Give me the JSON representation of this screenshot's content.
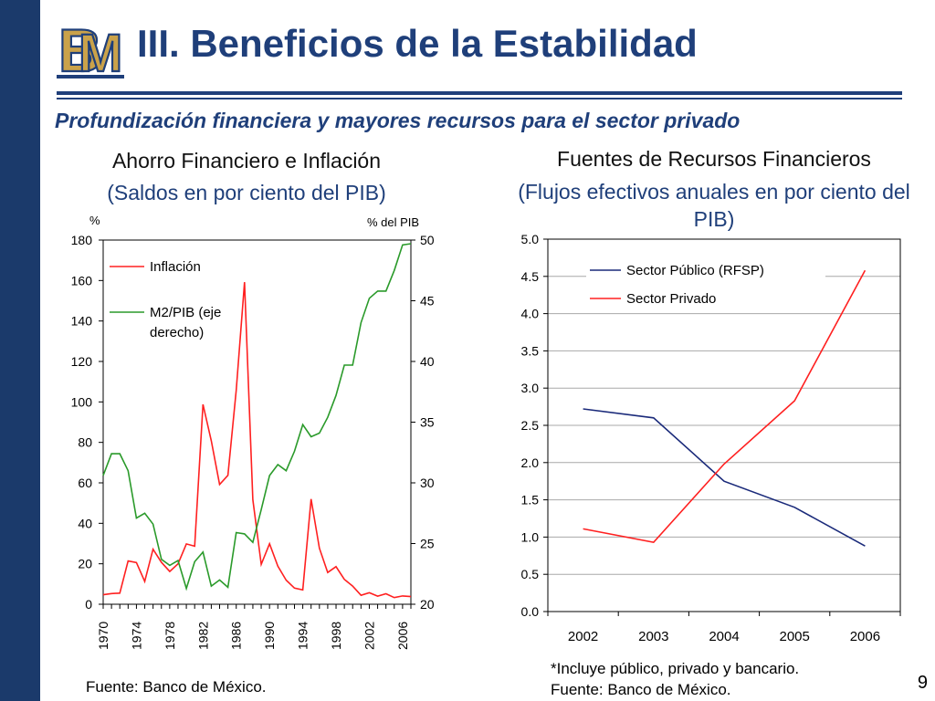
{
  "slide": {
    "title": "III. Beneficios de la Estabilidad",
    "subtitle": "Profundización financiera y mayores recursos para el sector privado",
    "page_number": "9",
    "logo_text": "BM",
    "accent_color": "#1f3f7a",
    "left_bar_color": "#1b3a6b"
  },
  "left_chart": {
    "heading": "Ahorro Financiero e Inflación",
    "subheading": "(Saldos en por ciento del PIB)",
    "source": "Fuente: Banco de México."
  },
  "right_chart": {
    "heading": "Fuentes de Recursos Financieros",
    "subheading": "(Flujos efectivos anuales en por ciento del PIB)",
    "footnote": "*Incluye público, privado y bancario.",
    "source": "Fuente: Banco de México."
  },
  "chart_data": [
    {
      "type": "line",
      "title": "Ahorro Financiero e Inflación",
      "subtitle": "(Saldos en por ciento del PIB)",
      "ylabel_left": "%",
      "ylabel_right": "% del PIB",
      "ylim_left": [
        0,
        180
      ],
      "yticks_left": [
        "0",
        "20",
        "40",
        "60",
        "80",
        "100",
        "120",
        "140",
        "160",
        "180"
      ],
      "ylim_right": [
        20,
        50
      ],
      "yticks_right": [
        "20",
        "25",
        "30",
        "35",
        "40",
        "45",
        "50"
      ],
      "xlim": [
        1970,
        2007
      ],
      "xticks": [
        "1970",
        "1974",
        "1978",
        "1982",
        "1986",
        "1990",
        "1994",
        "1998",
        "2002",
        "2006"
      ],
      "grid": false,
      "legend_position": "top-left",
      "series": [
        {
          "name": "Inflación",
          "axis": "left",
          "color": "#ff2020",
          "x": [
            1970,
            1971,
            1972,
            1973,
            1974,
            1975,
            1976,
            1977,
            1978,
            1979,
            1980,
            1981,
            1982,
            1983,
            1984,
            1985,
            1986,
            1987,
            1988,
            1989,
            1990,
            1991,
            1992,
            1993,
            1994,
            1995,
            1996,
            1997,
            1998,
            1999,
            2000,
            2001,
            2002,
            2003,
            2004,
            2005,
            2006,
            2007
          ],
          "values": [
            4.7,
            5.3,
            5.5,
            21.4,
            20.6,
            11.3,
            27.2,
            20.7,
            16.2,
            20.0,
            29.8,
            28.7,
            98.8,
            80.8,
            59.2,
            63.7,
            105.7,
            159.2,
            51.7,
            19.7,
            29.9,
            18.8,
            11.9,
            8.0,
            7.1,
            52.0,
            27.7,
            15.7,
            18.6,
            12.3,
            9.0,
            4.4,
            5.7,
            4.0,
            5.2,
            3.3,
            4.1,
            3.8
          ]
        },
        {
          "name": "M2/PIB (eje derecho)",
          "axis": "right",
          "color": "#2a9a2a",
          "x": [
            1970,
            1971,
            1972,
            1973,
            1974,
            1975,
            1976,
            1977,
            1978,
            1979,
            1980,
            1981,
            1982,
            1983,
            1984,
            1985,
            1986,
            1987,
            1988,
            1989,
            1990,
            1991,
            1992,
            1993,
            1994,
            1995,
            1996,
            1997,
            1998,
            1999,
            2000,
            2001,
            2002,
            2003,
            2004,
            2005,
            2006,
            2007
          ],
          "values": [
            30.6,
            32.4,
            32.4,
            31.0,
            27.1,
            27.5,
            26.6,
            23.7,
            23.2,
            23.6,
            21.3,
            23.5,
            24.3,
            21.5,
            22.0,
            21.4,
            25.9,
            25.8,
            25.1,
            27.8,
            30.6,
            31.5,
            31.0,
            32.6,
            34.8,
            33.8,
            34.1,
            35.4,
            37.2,
            39.7,
            39.7,
            43.2,
            45.2,
            45.8,
            45.8,
            47.5,
            49.6,
            49.7
          ]
        }
      ]
    },
    {
      "type": "line",
      "title": "Fuentes de Recursos Financieros",
      "subtitle": "(Flujos efectivos anuales en por ciento del PIB)",
      "categories": [
        "2002",
        "2003",
        "2004",
        "2005",
        "2006"
      ],
      "ylim": [
        0,
        5
      ],
      "yticks": [
        "0.0",
        "0.5",
        "1.0",
        "1.5",
        "2.0",
        "2.5",
        "3.0",
        "3.5",
        "4.0",
        "4.5",
        "5.0"
      ],
      "grid": true,
      "legend_position": "top",
      "series": [
        {
          "name": "Sector Público (RFSP)",
          "color": "#1a2a7a",
          "values": [
            2.72,
            2.6,
            1.75,
            1.4,
            0.88
          ]
        },
        {
          "name": "Sector Privado",
          "color": "#ff2020",
          "values": [
            1.11,
            0.93,
            1.98,
            2.83,
            4.58
          ]
        }
      ]
    }
  ]
}
